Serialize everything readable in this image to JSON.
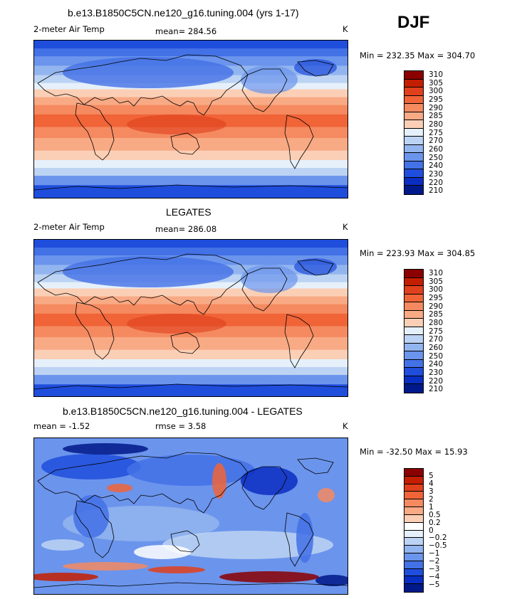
{
  "season": "DJF",
  "chart_data": [
    {
      "type": "heatmap",
      "title": "b.e13.B1850C5CN.ne120_g16.tuning.004 (yrs 1-17)",
      "variable": "2-meter Air Temp",
      "stat_text": "mean= 284.56",
      "units": "K",
      "minmax_text": "Min = 232.35 Max = 304.70",
      "colorbar_labels": [
        "310",
        "305",
        "300",
        "295",
        "290",
        "285",
        "280",
        "275",
        "270",
        "260",
        "250",
        "240",
        "230",
        "220",
        "210"
      ],
      "colors": [
        "#8b0000",
        "#c41e00",
        "#e0401c",
        "#f06438",
        "#f58a60",
        "#f8aa85",
        "#fbcfb5",
        "#e6f0fa",
        "#bcd3f3",
        "#93b5ef",
        "#6b94ec",
        "#4371e6",
        "#1f4ddc",
        "#0a2ec2",
        "#00198a"
      ]
    },
    {
      "type": "heatmap",
      "title": "LEGATES",
      "variable": "2-meter Air Temp",
      "stat_text": "mean= 286.08",
      "units": "K",
      "minmax_text": "Min = 223.93 Max = 304.85",
      "colorbar_labels": [
        "310",
        "305",
        "300",
        "295",
        "290",
        "285",
        "280",
        "275",
        "270",
        "260",
        "250",
        "240",
        "230",
        "220",
        "210"
      ],
      "colors": [
        "#8b0000",
        "#c41e00",
        "#e0401c",
        "#f06438",
        "#f58a60",
        "#f8aa85",
        "#fbcfb5",
        "#e6f0fa",
        "#bcd3f3",
        "#93b5ef",
        "#6b94ec",
        "#4371e6",
        "#1f4ddc",
        "#0a2ec2",
        "#00198a"
      ]
    },
    {
      "type": "heatmap",
      "title": "b.e13.B1850C5CN.ne120_g16.tuning.004 - LEGATES",
      "stat_text": "mean = -1.52",
      "rmse_text": "rmse = 3.58",
      "units": "K",
      "minmax_text": "Min = -32.50 Max = 15.93",
      "colorbar_labels": [
        "5",
        "4",
        "3",
        "2",
        "1",
        "0.5",
        "0.2",
        "0",
        "-0.2",
        "-0.5",
        "-1",
        "-2",
        "-3",
        "-4",
        "-5"
      ],
      "colors": [
        "#8b0000",
        "#c41e00",
        "#e0401c",
        "#f06438",
        "#f58a60",
        "#f8aa85",
        "#fbcfb5",
        "#ffffff",
        "#e6f0fa",
        "#bcd3f3",
        "#93b5ef",
        "#6b94ec",
        "#4371e6",
        "#1f4ddc",
        "#0a2ec2",
        "#00198a"
      ]
    }
  ]
}
